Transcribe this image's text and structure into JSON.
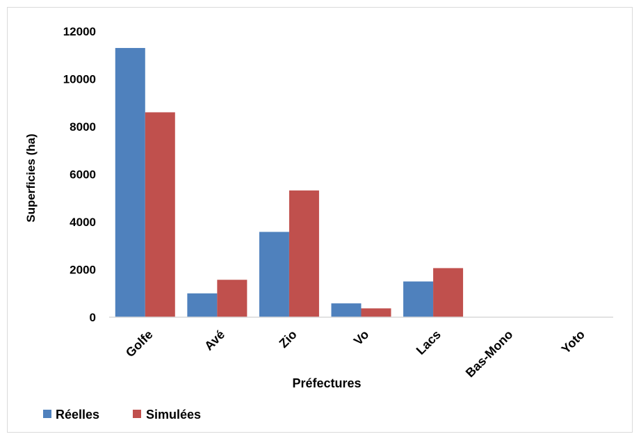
{
  "chart_data": {
    "type": "bar",
    "title": "",
    "xlabel": "Préfectures",
    "ylabel": "Superficies (ha)",
    "ylim": [
      0,
      12000
    ],
    "yticks": [
      0,
      2000,
      4000,
      6000,
      8000,
      10000,
      12000
    ],
    "grid": false,
    "legend_position": "bottom-left",
    "categories": [
      "Golfe",
      "Avé",
      "Zio",
      "Vo",
      "Lacs",
      "Bas-Mono",
      "Yoto"
    ],
    "series": [
      {
        "name": "Réelles",
        "color": "#4f81bd",
        "values": [
          11300,
          1000,
          3580,
          580,
          1500,
          0,
          0
        ]
      },
      {
        "name": "Simulées",
        "color": "#c0504d",
        "values": [
          8600,
          1570,
          5320,
          370,
          2060,
          0,
          0
        ]
      }
    ]
  }
}
